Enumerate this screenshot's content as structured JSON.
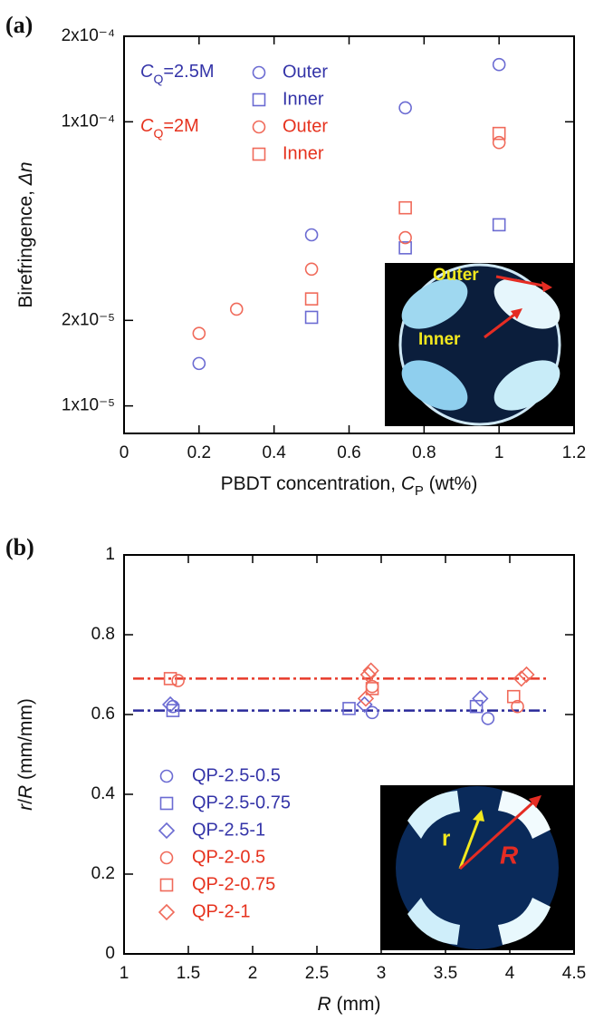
{
  "chart_data": [
    {
      "type": "scatter",
      "panel_label": "(a)",
      "x_label": [
        {
          "text": "PBDT concentration, ",
          "style": "normal"
        },
        {
          "text": "C",
          "style": "italic"
        },
        {
          "text": "P",
          "style": "sub"
        },
        {
          "text": " (wt%)",
          "style": "normal"
        }
      ],
      "y_label": [
        {
          "text": "Birefringence, ",
          "style": "normal"
        },
        {
          "text": "Δn",
          "style": "italic"
        }
      ],
      "xlim": [
        0,
        1.2
      ],
      "xticks": [
        0,
        0.2,
        0.4,
        0.6,
        0.8,
        1,
        1.2
      ],
      "ylim": [
        8e-06,
        0.0002
      ],
      "y_scale": "log",
      "yticks": [
        {
          "value": 1e-05,
          "label": "1x10⁻⁵"
        },
        {
          "value": 2e-05,
          "label": "2x10⁻⁵"
        },
        {
          "value": 0.0001,
          "label": "1x10⁻⁴"
        },
        {
          "value": 0.0002,
          "label": "2x10⁻⁴"
        }
      ],
      "groups": [
        {
          "label": [
            {
              "text": "C",
              "style": "italic"
            },
            {
              "text": "Q",
              "style": "sub"
            },
            {
              "text": "=2.5M",
              "style": "normal"
            }
          ],
          "color": "#3434a8",
          "series": [
            {
              "name": "Outer",
              "marker": "circle",
              "color": "#6b6bd2",
              "x": [
                0.2,
                0.5,
                0.75,
                1
              ],
              "values": [
                1.41e-05,
                4e-05,
                0.000112,
                0.000159
              ]
            },
            {
              "name": "Inner",
              "marker": "square",
              "color": "#6b6bd2",
              "x": [
                0.5,
                0.75,
                1
              ],
              "values": [
                2.05e-05,
                3.6e-05,
                4.34e-05
              ]
            }
          ]
        },
        {
          "label": [
            {
              "text": "C",
              "style": "italic"
            },
            {
              "text": "Q",
              "style": "sub"
            },
            {
              "text": "=2M",
              "style": "normal"
            }
          ],
          "color": "#e6321e",
          "series": [
            {
              "name": "Outer",
              "marker": "circle",
              "color": "#f06a5a",
              "x": [
                0.2,
                0.3,
                0.5,
                0.75,
                1
              ],
              "values": [
                1.8e-05,
                2.19e-05,
                3.03e-05,
                3.91e-05,
                8.45e-05
              ]
            },
            {
              "name": "Inner",
              "marker": "square",
              "color": "#f06a5a",
              "x": [
                0.5,
                0.75,
                1
              ],
              "values": [
                2.38e-05,
                4.98e-05,
                9.1e-05
              ]
            }
          ]
        }
      ],
      "inset_labels": [
        "Outer",
        "Inner"
      ]
    },
    {
      "type": "scatter",
      "panel_label": "(b)",
      "x_label": [
        {
          "text": "R",
          "style": "italic"
        },
        {
          "text": " (mm)",
          "style": "normal"
        }
      ],
      "y_label": [
        {
          "text": "r",
          "style": "italic"
        },
        {
          "text": "/",
          "style": "normal"
        },
        {
          "text": "R",
          "style": "italic"
        },
        {
          "text": " (mm/mm)",
          "style": "normal"
        }
      ],
      "xlim": [
        1,
        4.5
      ],
      "xticks": [
        1,
        1.5,
        2,
        2.5,
        3,
        3.5,
        4,
        4.5
      ],
      "ylim": [
        0,
        1
      ],
      "yticks": [
        0,
        0.2,
        0.4,
        0.6,
        0.8,
        1
      ],
      "reference_lines": [
        {
          "value": 0.69,
          "color": "#e83a2a"
        },
        {
          "value": 0.61,
          "color": "#2a2a9a"
        }
      ],
      "series": [
        {
          "name": "QP-2.5-0.5",
          "marker": "circle",
          "color": "#6b6bd2",
          "x": [
            1.38,
            2.93,
            3.83
          ],
          "values": [
            0.62,
            0.605,
            0.59
          ]
        },
        {
          "name": "QP-2.5-0.75",
          "marker": "square",
          "color": "#6b6bd2",
          "x": [
            1.38,
            2.75,
            3.74
          ],
          "values": [
            0.61,
            0.615,
            0.62
          ]
        },
        {
          "name": "QP-2.5-1",
          "marker": "diamond",
          "color": "#6b6bd2",
          "x": [
            1.36,
            2.87,
            3.77
          ],
          "values": [
            0.625,
            0.625,
            0.64
          ]
        },
        {
          "name": "QP-2-0.5",
          "marker": "circle",
          "color": "#f06a5a",
          "x": [
            1.42,
            2.93,
            4.06
          ],
          "values": [
            0.685,
            0.67,
            0.62
          ]
        },
        {
          "name": "QP-2-0.75",
          "marker": "square",
          "color": "#f06a5a",
          "x": [
            1.36,
            2.93,
            4.03
          ],
          "values": [
            0.69,
            0.665,
            0.645
          ]
        },
        {
          "name": "QP-2-1",
          "marker": "diamond",
          "color": "#f06a5a",
          "x": [
            2.88,
            2.9,
            2.92,
            4.09,
            4.13
          ],
          "values": [
            0.64,
            0.7,
            0.71,
            0.69,
            0.7
          ]
        }
      ],
      "inset_labels": [
        "r",
        "R"
      ]
    }
  ]
}
